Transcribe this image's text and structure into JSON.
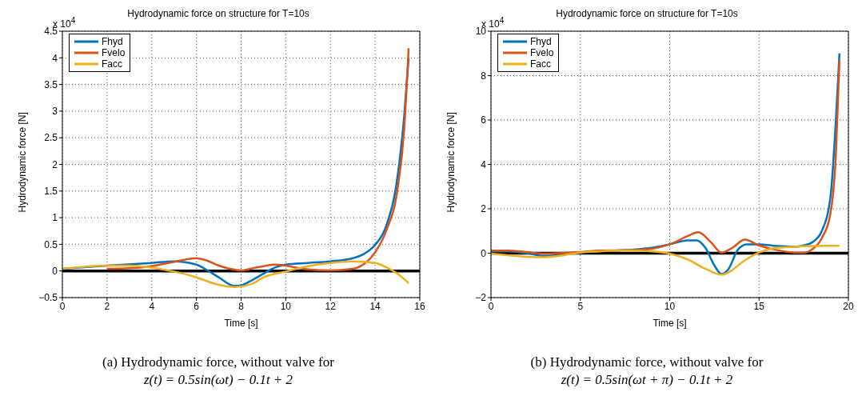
{
  "chart_data": [
    {
      "type": "line",
      "title": "Hydrodynamic force on structure for T=10s",
      "xlabel": "Time [s]",
      "ylabel": "Hydrodynamic force [N]",
      "xlim": [
        0,
        16
      ],
      "xticks": [
        0,
        2,
        4,
        6,
        8,
        10,
        12,
        14,
        16
      ],
      "ylim": [
        -0.5,
        4.5
      ],
      "yticks": [
        -0.5,
        0,
        0.5,
        1,
        1.5,
        2,
        2.5,
        3,
        3.5,
        4,
        4.5
      ],
      "grid": true,
      "legend": "top left",
      "line_style": "solid",
      "annotations": [
        "x 10$^{4}$",
        "(a) Hydrodynamic force, without valve for",
        "z(t) = 0.5sin(ωt) − 0.1t + 2"
      ],
      "ref_lines": [
        {
          "axis": "y",
          "value": 0,
          "color": "#000000"
        }
      ],
      "series": [
        {
          "name": "Fhyd",
          "color": "#0072bd",
          "x": [
            0,
            2,
            4,
            5,
            6,
            6.5,
            7,
            7.7,
            8,
            8.5,
            9,
            9.5,
            10,
            11,
            12,
            13,
            13.5,
            14,
            14.5,
            15,
            15.3,
            15.5
          ],
          "values": [
            0.04,
            0.1,
            0.15,
            0.18,
            0.12,
            0.01,
            -0.12,
            -0.28,
            -0.27,
            -0.17,
            -0.05,
            0.06,
            0.12,
            0.15,
            0.18,
            0.24,
            0.32,
            0.49,
            0.85,
            1.76,
            2.9,
            4.0
          ]
        },
        {
          "name": "Fvelo",
          "color": "#d95319",
          "x": [
            2,
            3,
            4,
            5,
            6,
            6.5,
            7,
            7.5,
            8,
            8.5,
            9,
            9.5,
            10,
            10.5,
            11,
            12,
            13,
            13.5,
            14,
            14.5,
            15,
            15.3,
            15.5
          ],
          "values": [
            0.04,
            0.05,
            0.09,
            0.17,
            0.24,
            0.19,
            0.1,
            0.04,
            0.01,
            0.05,
            0.09,
            0.12,
            0.1,
            0.06,
            0.03,
            0.01,
            0.04,
            0.13,
            0.35,
            0.76,
            1.53,
            2.66,
            4.18
          ]
        },
        {
          "name": "Facc",
          "color": "#edb120",
          "x": [
            0,
            1,
            2,
            3,
            4,
            5,
            6,
            7,
            7.7,
            8.5,
            9,
            10,
            11,
            12,
            13,
            14,
            14.5,
            15,
            15.5
          ],
          "values": [
            0.04,
            0.08,
            0.1,
            0.1,
            0.06,
            -0.01,
            -0.12,
            -0.26,
            -0.3,
            -0.24,
            -0.12,
            -0.01,
            0.09,
            0.15,
            0.18,
            0.15,
            0.07,
            -0.05,
            -0.23
          ]
        }
      ]
    },
    {
      "type": "line",
      "title": "Hydrodynamic force on structure for T=10s",
      "xlabel": "Time [s]",
      "ylabel": "Hydrodynamic force [N]",
      "xlim": [
        0,
        20
      ],
      "xticks": [
        0,
        5,
        10,
        15,
        20
      ],
      "ylim": [
        -2,
        10
      ],
      "yticks": [
        -2,
        0,
        2,
        4,
        6,
        8,
        10
      ],
      "grid": true,
      "legend": "top left",
      "line_style": "solid",
      "annotations": [
        "x 10$^{4}$",
        "(b) Hydrodynamic force, without valve for",
        "z(t) = 0.5sin(ωt + π) − 0.1t + 2"
      ],
      "ref_lines": [
        {
          "axis": "y",
          "value": 0,
          "color": "#000000"
        }
      ],
      "series": [
        {
          "name": "Fhyd",
          "color": "#0072bd",
          "x": [
            0,
            1,
            2,
            3,
            4,
            5,
            6,
            7,
            8,
            9,
            10,
            11,
            11.5,
            12,
            12.5,
            12.9,
            13.3,
            13.8,
            14.3,
            15,
            16,
            17,
            17.5,
            18,
            18.5,
            19,
            19.3,
            19.5
          ],
          "values": [
            0.08,
            0.08,
            0,
            -0.13,
            -0.07,
            0.03,
            0.08,
            0.12,
            0.16,
            0.24,
            0.4,
            0.58,
            0.58,
            0.24,
            -0.55,
            -0.94,
            -0.7,
            0.14,
            0.4,
            0.4,
            0.32,
            0.29,
            0.35,
            0.5,
            0.98,
            2.56,
            6.0,
            9.0
          ]
        },
        {
          "name": "Fvelo",
          "color": "#d95319",
          "x": [
            0,
            1,
            2,
            3,
            4,
            5,
            6,
            8,
            9,
            10,
            11,
            11.6,
            12.3,
            12.9,
            13.5,
            14.2,
            15,
            16,
            17,
            17.5,
            18,
            18.5,
            19,
            19.3,
            19.5
          ],
          "values": [
            0.12,
            0.12,
            0.05,
            -0.02,
            0.01,
            0.05,
            0.12,
            0.14,
            0.2,
            0.4,
            0.77,
            0.95,
            0.5,
            0.03,
            0.24,
            0.61,
            0.35,
            0.14,
            0.03,
            0.03,
            0.19,
            0.66,
            1.82,
            4.45,
            8.7
          ]
        },
        {
          "name": "Facc",
          "color": "#edb120",
          "x": [
            0,
            1,
            2,
            3,
            4,
            5,
            6,
            7,
            8,
            9,
            10,
            11,
            12,
            12.9,
            13.5,
            14,
            15,
            16,
            17,
            18,
            19,
            19.5
          ],
          "values": [
            -0.02,
            -0.1,
            -0.16,
            -0.18,
            -0.1,
            0.03,
            0.08,
            0.12,
            0.12,
            0.08,
            -0.02,
            -0.28,
            -0.7,
            -0.97,
            -0.76,
            -0.44,
            0.03,
            0.24,
            0.29,
            0.32,
            0.33,
            0.33
          ]
        }
      ]
    }
  ]
}
